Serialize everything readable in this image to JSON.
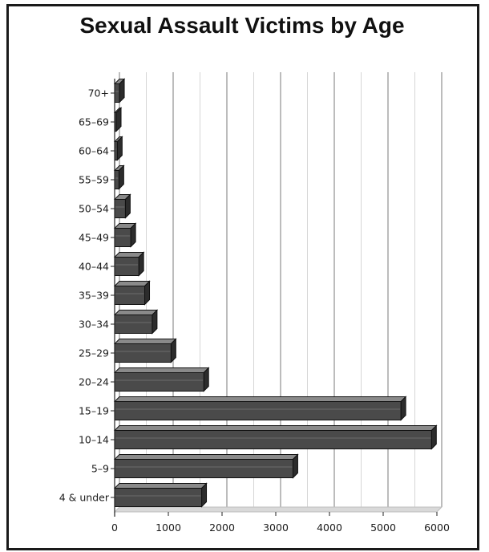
{
  "chart_data": {
    "type": "bar",
    "orientation": "horizontal",
    "title": "Sexual Assault Victims by Age",
    "xlabel": "",
    "ylabel": "",
    "categories": [
      "4 & under",
      "5–9",
      "10–14",
      "15–19",
      "20–24",
      "25–29",
      "30–34",
      "35–39",
      "40–44",
      "45–49",
      "50–54",
      "55–59",
      "60–64",
      "65–69",
      "70+"
    ],
    "values": [
      1620,
      3320,
      5900,
      5330,
      1660,
      1050,
      700,
      560,
      450,
      300,
      200,
      80,
      50,
      30,
      90
    ],
    "xlim": [
      0,
      6000
    ],
    "x_ticks": [
      "0",
      "1000",
      "2000",
      "3000",
      "4000",
      "5000",
      "6000"
    ],
    "grid": "vertical",
    "colors": {
      "bar_face": "#4a4a4a",
      "bar_top": "#8a8a8a",
      "bar_side": "#2c2c2c",
      "floor": "#d9d9d9",
      "grid": "#9a9a9a"
    }
  }
}
